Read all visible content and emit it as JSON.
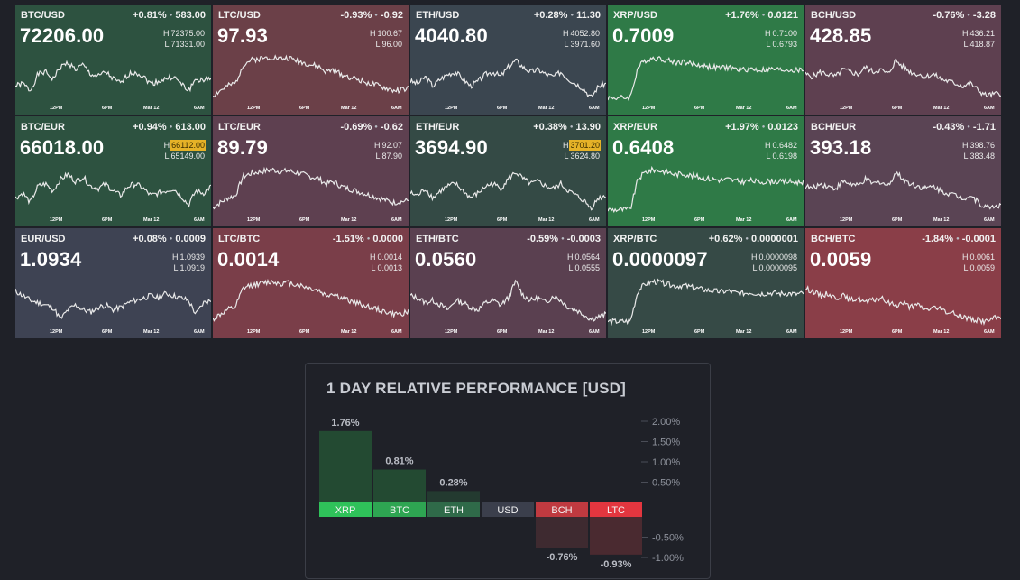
{
  "colors": {
    "up": "#2c5a42",
    "up_strong": "#2f7a47",
    "down": "#7a3e49",
    "down_soft": "#5a4050",
    "neutral": "#3b4252",
    "neutral_dark": "#3e4451"
  },
  "tiles": [
    {
      "pair": "BTC/USD",
      "change_pct": "+0.81%",
      "change_abs": "583.00",
      "price": "72206.00",
      "high": "72375.00",
      "low": "71331.00",
      "high_hit": false,
      "bg": "#2d5240",
      "trend": [
        0.3,
        0.35,
        0.2,
        0.55,
        0.6,
        0.45,
        0.7,
        0.8,
        0.65,
        0.75,
        0.55,
        0.5,
        0.6,
        0.45,
        0.35,
        0.55,
        0.6,
        0.5,
        0.35,
        0.4,
        0.45,
        0.5,
        0.35,
        0.2,
        0.45,
        0.4,
        0.5
      ]
    },
    {
      "pair": "LTC/USD",
      "change_pct": "-0.93%",
      "change_abs": "-0.92",
      "price": "97.93",
      "high": "100.67",
      "low": "96.00",
      "high_hit": false,
      "bg": "#6b4048",
      "trend": [
        0.1,
        0.2,
        0.3,
        0.35,
        0.75,
        0.85,
        0.88,
        0.9,
        0.92,
        0.88,
        0.9,
        0.85,
        0.8,
        0.75,
        0.72,
        0.6,
        0.65,
        0.55,
        0.5,
        0.45,
        0.4,
        0.35,
        0.3,
        0.25,
        0.2,
        0.22,
        0.25
      ]
    },
    {
      "pair": "ETH/USD",
      "change_pct": "+0.28%",
      "change_abs": "11.30",
      "price": "4040.80",
      "high": "4052.80",
      "low": "3971.60",
      "high_hit": false,
      "bg": "#3b4650",
      "trend": [
        0.4,
        0.35,
        0.5,
        0.3,
        0.45,
        0.55,
        0.6,
        0.45,
        0.3,
        0.4,
        0.55,
        0.6,
        0.5,
        0.7,
        0.85,
        0.7,
        0.6,
        0.65,
        0.55,
        0.5,
        0.6,
        0.45,
        0.35,
        0.25,
        0.05,
        0.3,
        0.35
      ]
    },
    {
      "pair": "XRP/USD",
      "change_pct": "+1.76%",
      "change_abs": "0.0121",
      "price": "0.7009",
      "high": "0.7100",
      "low": "0.6793",
      "high_hit": false,
      "bg": "#2f7a47",
      "trend": [
        0.05,
        0.05,
        0.05,
        0.06,
        0.7,
        0.85,
        0.9,
        0.88,
        0.85,
        0.8,
        0.82,
        0.78,
        0.75,
        0.72,
        0.7,
        0.68,
        0.7,
        0.66,
        0.65,
        0.67,
        0.64,
        0.65,
        0.66,
        0.64,
        0.65,
        0.63,
        0.65
      ]
    },
    {
      "pair": "BCH/USD",
      "change_pct": "-0.76%",
      "change_abs": "-3.28",
      "price": "428.85",
      "high": "436.21",
      "low": "418.87",
      "high_hit": false,
      "bg": "#5e4050",
      "trend": [
        0.55,
        0.5,
        0.6,
        0.55,
        0.5,
        0.65,
        0.6,
        0.55,
        0.7,
        0.6,
        0.65,
        0.55,
        0.85,
        0.7,
        0.6,
        0.55,
        0.5,
        0.55,
        0.45,
        0.4,
        0.35,
        0.3,
        0.35,
        0.2,
        0.1,
        0.12,
        0.15
      ]
    },
    {
      "pair": "BTC/EUR",
      "change_pct": "+0.94%",
      "change_abs": "613.00",
      "price": "66018.00",
      "high": "66112.00",
      "low": "65149.00",
      "high_hit": true,
      "bg": "#2d5240",
      "trend": [
        0.3,
        0.4,
        0.2,
        0.55,
        0.6,
        0.45,
        0.7,
        0.8,
        0.65,
        0.75,
        0.55,
        0.5,
        0.6,
        0.45,
        0.35,
        0.55,
        0.6,
        0.5,
        0.35,
        0.4,
        0.45,
        0.5,
        0.35,
        0.15,
        0.45,
        0.4,
        0.55
      ]
    },
    {
      "pair": "LTC/EUR",
      "change_pct": "-0.69%",
      "change_abs": "-0.62",
      "price": "89.79",
      "high": "92.07",
      "low": "87.90",
      "high_hit": false,
      "bg": "#5e4050",
      "trend": [
        0.1,
        0.2,
        0.3,
        0.35,
        0.75,
        0.82,
        0.85,
        0.88,
        0.9,
        0.86,
        0.88,
        0.84,
        0.8,
        0.75,
        0.72,
        0.6,
        0.65,
        0.55,
        0.5,
        0.45,
        0.4,
        0.35,
        0.3,
        0.25,
        0.2,
        0.22,
        0.25
      ]
    },
    {
      "pair": "ETH/EUR",
      "change_pct": "+0.38%",
      "change_abs": "13.90",
      "price": "3694.90",
      "high": "3701.20",
      "low": "3624.80",
      "high_hit": true,
      "bg": "#344a45",
      "trend": [
        0.4,
        0.35,
        0.5,
        0.3,
        0.45,
        0.55,
        0.6,
        0.45,
        0.3,
        0.4,
        0.55,
        0.6,
        0.5,
        0.7,
        0.85,
        0.7,
        0.6,
        0.65,
        0.55,
        0.5,
        0.6,
        0.45,
        0.35,
        0.25,
        0.08,
        0.3,
        0.35
      ]
    },
    {
      "pair": "XRP/EUR",
      "change_pct": "+1.97%",
      "change_abs": "0.0123",
      "price": "0.6408",
      "high": "0.6482",
      "low": "0.6198",
      "high_hit": false,
      "bg": "#2f7a47",
      "trend": [
        0.05,
        0.05,
        0.05,
        0.06,
        0.7,
        0.85,
        0.9,
        0.88,
        0.85,
        0.8,
        0.82,
        0.78,
        0.75,
        0.72,
        0.7,
        0.68,
        0.7,
        0.66,
        0.65,
        0.67,
        0.64,
        0.65,
        0.66,
        0.64,
        0.65,
        0.63,
        0.65
      ]
    },
    {
      "pair": "BCH/EUR",
      "change_pct": "-0.43%",
      "change_abs": "-1.71",
      "price": "393.18",
      "high": "398.76",
      "low": "383.48",
      "high_hit": false,
      "bg": "#5a4454",
      "trend": [
        0.55,
        0.5,
        0.6,
        0.55,
        0.5,
        0.65,
        0.6,
        0.55,
        0.7,
        0.6,
        0.65,
        0.55,
        0.85,
        0.7,
        0.6,
        0.55,
        0.5,
        0.55,
        0.45,
        0.4,
        0.35,
        0.3,
        0.35,
        0.2,
        0.1,
        0.12,
        0.15
      ]
    },
    {
      "pair": "EUR/USD",
      "change_pct": "+0.08%",
      "change_abs": "0.0009",
      "price": "1.0934",
      "high": "1.0939",
      "low": "1.0919",
      "high_hit": false,
      "bg": "#3e4353",
      "trend": [
        0.7,
        0.6,
        0.5,
        0.45,
        0.4,
        0.35,
        0.1,
        0.3,
        0.4,
        0.3,
        0.25,
        0.35,
        0.4,
        0.3,
        0.35,
        0.45,
        0.5,
        0.55,
        0.6,
        0.55,
        0.65,
        0.6,
        0.55,
        0.5,
        0.2,
        0.45,
        0.5
      ]
    },
    {
      "pair": "LTC/BTC",
      "change_pct": "-1.51%",
      "change_abs": "0.0000",
      "price": "0.0014",
      "high": "0.0014",
      "low": "0.0013",
      "high_hit": false,
      "bg": "#7a3e49",
      "trend": [
        0.1,
        0.2,
        0.3,
        0.35,
        0.75,
        0.82,
        0.85,
        0.88,
        0.9,
        0.86,
        0.88,
        0.84,
        0.8,
        0.75,
        0.72,
        0.6,
        0.65,
        0.55,
        0.5,
        0.45,
        0.4,
        0.35,
        0.3,
        0.25,
        0.2,
        0.22,
        0.25
      ]
    },
    {
      "pair": "ETH/BTC",
      "change_pct": "-0.59%",
      "change_abs": "-0.0003",
      "price": "0.0560",
      "high": "0.0564",
      "low": "0.0555",
      "high_hit": false,
      "bg": "#5a4050",
      "trend": [
        0.6,
        0.55,
        0.45,
        0.5,
        0.4,
        0.3,
        0.5,
        0.45,
        0.35,
        0.3,
        0.45,
        0.5,
        0.4,
        0.55,
        0.9,
        0.6,
        0.5,
        0.55,
        0.45,
        0.6,
        0.5,
        0.35,
        0.3,
        0.2,
        0.1,
        0.15,
        0.2
      ]
    },
    {
      "pair": "XRP/BTC",
      "change_pct": "+0.62%",
      "change_abs": "0.0000001",
      "price": "0.0000097",
      "high": "0.0000098",
      "low": "0.0000095",
      "high_hit": false,
      "bg": "#364a46",
      "trend": [
        0.05,
        0.05,
        0.05,
        0.06,
        0.7,
        0.85,
        0.9,
        0.88,
        0.85,
        0.8,
        0.82,
        0.78,
        0.75,
        0.72,
        0.7,
        0.68,
        0.7,
        0.66,
        0.65,
        0.67,
        0.64,
        0.65,
        0.66,
        0.64,
        0.65,
        0.63,
        0.65
      ]
    },
    {
      "pair": "BCH/BTC",
      "change_pct": "-1.84%",
      "change_abs": "-0.0001",
      "price": "0.0059",
      "high": "0.0061",
      "low": "0.0059",
      "high_hit": false,
      "bg": "#8a3e48",
      "trend": [
        0.75,
        0.7,
        0.6,
        0.65,
        0.55,
        0.6,
        0.5,
        0.55,
        0.45,
        0.5,
        0.55,
        0.45,
        0.4,
        0.45,
        0.35,
        0.4,
        0.3,
        0.35,
        0.3,
        0.25,
        0.2,
        0.15,
        0.1,
        0.08,
        0.05,
        0.12,
        0.15
      ]
    }
  ],
  "time_ticks": [
    "12PM",
    "6PM",
    "Mar 12",
    "6AM"
  ],
  "performance": {
    "title": "1 DAY RELATIVE PERFORMANCE  [USD]",
    "chart_data": {
      "type": "bar",
      "categories": [
        "XRP",
        "BTC",
        "ETH",
        "USD",
        "BCH",
        "LTC"
      ],
      "values": [
        1.76,
        0.81,
        0.28,
        0,
        -0.76,
        -0.93
      ],
      "value_labels": [
        "1.76%",
        "0.81%",
        "0.28%",
        "",
        "-0.76%",
        "-0.93%"
      ],
      "y_ticks": [
        "2.00%",
        "1.50%",
        "1.00%",
        "0.50%",
        "-0.50%",
        "-1.00%"
      ],
      "y_tick_values": [
        2.0,
        1.5,
        1.0,
        0.5,
        -0.5,
        -1.0
      ],
      "label_colors": [
        "#2fc25a",
        "#2ea552",
        "#2f6a49",
        "#3b3f4c",
        "#c03a40",
        "#e3363f"
      ],
      "bar_colors": [
        "#234a32",
        "#234a32",
        "#233a30",
        "#2a2d35",
        "#3e2a30",
        "#4a2a30"
      ]
    }
  }
}
